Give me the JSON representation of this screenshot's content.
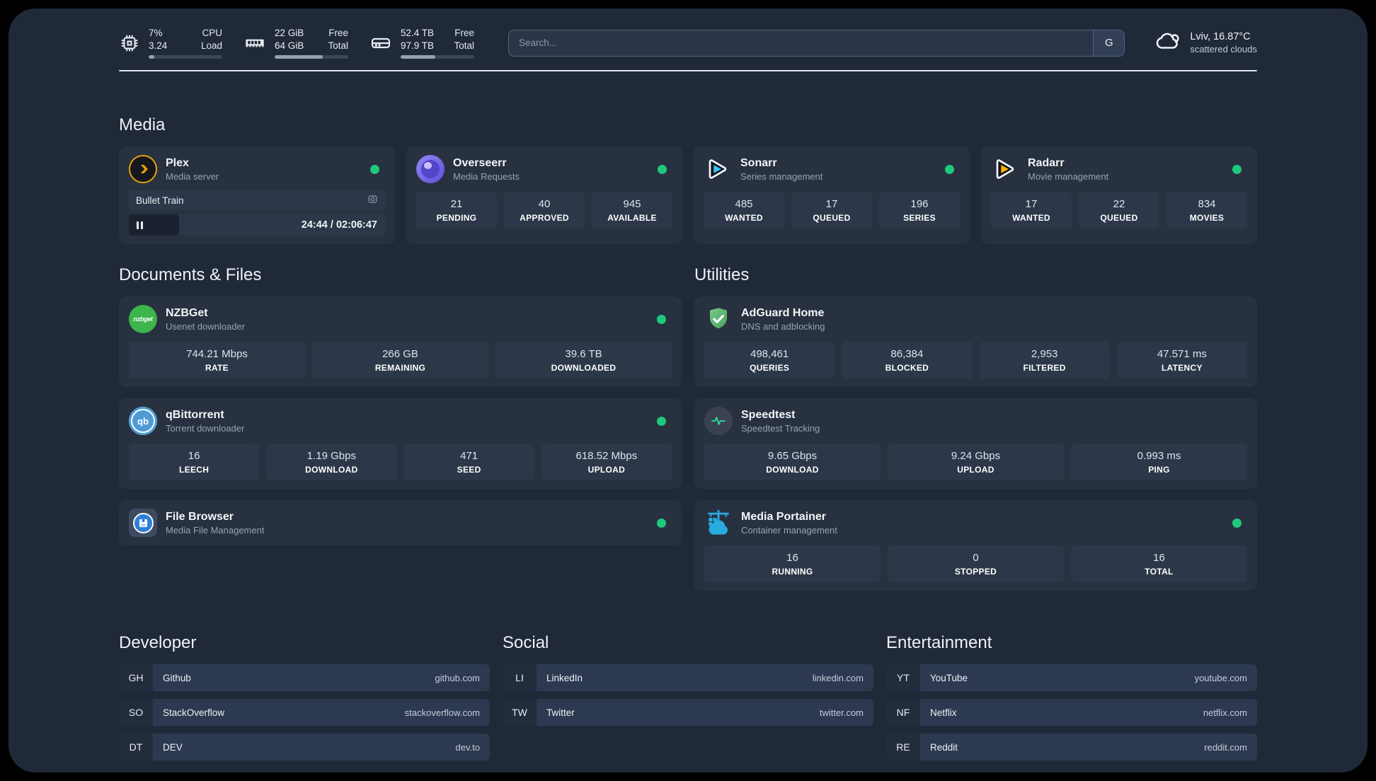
{
  "colors": {
    "status_online": "#1ec97e",
    "plex_accent": "#e5a00d",
    "overseerr_accent": "#6f63e8",
    "sonarr_accent": "#35c5f4",
    "radarr_accent": "#ffb300",
    "nzbget_accent": "#3cb54b",
    "qbittorrent_accent": "#4f9bd5",
    "adguard_accent": "#68c07b",
    "speedtest_accent": "#2de3a4",
    "portainer_accent": "#29abe2"
  },
  "topbar": {
    "stats": [
      {
        "icon": "cpu-icon",
        "values": [
          "7%",
          "3.24"
        ],
        "labels": [
          "CPU",
          "Load"
        ],
        "progress": 8
      },
      {
        "icon": "ram-icon",
        "values": [
          "22 GiB",
          "64 GiB"
        ],
        "labels": [
          "Free",
          "Total"
        ],
        "progress": 65
      },
      {
        "icon": "disk-icon",
        "values": [
          "52.4 TB",
          "97.9 TB"
        ],
        "labels": [
          "Free",
          "Total"
        ],
        "progress": 47
      }
    ],
    "search": {
      "placeholder": "Search...",
      "button": "G"
    },
    "weather": {
      "location": "Lviv, 16.87°C",
      "condition": "scattered clouds"
    }
  },
  "sections": {
    "media": {
      "title": "Media",
      "plex": {
        "title": "Plex",
        "subtitle": "Media server",
        "now_playing": {
          "title": "Bullet Train",
          "time": "24:44 / 02:06:47",
          "progress_pct": 19.5
        }
      },
      "overseerr": {
        "title": "Overseerr",
        "subtitle": "Media Requests",
        "stats": [
          {
            "value": "21",
            "label": "PENDING"
          },
          {
            "value": "40",
            "label": "APPROVED"
          },
          {
            "value": "945",
            "label": "AVAILABLE"
          }
        ]
      },
      "sonarr": {
        "title": "Sonarr",
        "subtitle": "Series management",
        "stats": [
          {
            "value": "485",
            "label": "WANTED"
          },
          {
            "value": "17",
            "label": "QUEUED"
          },
          {
            "value": "196",
            "label": "SERIES"
          }
        ]
      },
      "radarr": {
        "title": "Radarr",
        "subtitle": "Movie management",
        "stats": [
          {
            "value": "17",
            "label": "WANTED"
          },
          {
            "value": "22",
            "label": "QUEUED"
          },
          {
            "value": "834",
            "label": "MOVIES"
          }
        ]
      }
    },
    "documents": {
      "title": "Documents & Files",
      "nzbget": {
        "title": "NZBGet",
        "subtitle": "Usenet downloader",
        "logo_text": "nzbget",
        "stats": [
          {
            "value": "744.21 Mbps",
            "label": "RATE"
          },
          {
            "value": "266 GB",
            "label": "REMAINING"
          },
          {
            "value": "39.6 TB",
            "label": "DOWNLOADED"
          }
        ]
      },
      "qbittorrent": {
        "title": "qBittorrent",
        "subtitle": "Torrent downloader",
        "logo_text": "qb",
        "stats": [
          {
            "value": "16",
            "label": "LEECH"
          },
          {
            "value": "1.19 Gbps",
            "label": "DOWNLOAD"
          },
          {
            "value": "471",
            "label": "SEED"
          },
          {
            "value": "618.52 Mbps",
            "label": "UPLOAD"
          }
        ]
      },
      "filebrowser": {
        "title": "File Browser",
        "subtitle": "Media File Management"
      }
    },
    "utilities": {
      "title": "Utilities",
      "adguard": {
        "title": "AdGuard Home",
        "subtitle": "DNS and adblocking",
        "stats": [
          {
            "value": "498,461",
            "label": "QUERIES"
          },
          {
            "value": "86,384",
            "label": "BLOCKED"
          },
          {
            "value": "2,953",
            "label": "FILTERED"
          },
          {
            "value": "47.571 ms",
            "label": "LATENCY"
          }
        ]
      },
      "speedtest": {
        "title": "Speedtest",
        "subtitle": "Speedtest Tracking",
        "stats": [
          {
            "value": "9.65 Gbps",
            "label": "DOWNLOAD"
          },
          {
            "value": "9.24 Gbps",
            "label": "UPLOAD"
          },
          {
            "value": "0.993 ms",
            "label": "PING"
          }
        ]
      },
      "portainer": {
        "title": "Media Portainer",
        "subtitle": "Container management",
        "stats": [
          {
            "value": "16",
            "label": "RUNNING"
          },
          {
            "value": "0",
            "label": "STOPPED"
          },
          {
            "value": "16",
            "label": "TOTAL"
          }
        ]
      }
    },
    "developer": {
      "title": "Developer",
      "items": [
        {
          "abbr": "GH",
          "name": "Github",
          "url": "github.com"
        },
        {
          "abbr": "SO",
          "name": "StackOverflow",
          "url": "stackoverflow.com"
        },
        {
          "abbr": "DT",
          "name": "DEV",
          "url": "dev.to"
        }
      ]
    },
    "social": {
      "title": "Social",
      "items": [
        {
          "abbr": "LI",
          "name": "LinkedIn",
          "url": "linkedin.com"
        },
        {
          "abbr": "TW",
          "name": "Twitter",
          "url": "twitter.com"
        }
      ]
    },
    "entertainment": {
      "title": "Entertainment",
      "items": [
        {
          "abbr": "YT",
          "name": "YouTube",
          "url": "youtube.com"
        },
        {
          "abbr": "NF",
          "name": "Netflix",
          "url": "netflix.com"
        },
        {
          "abbr": "RE",
          "name": "Reddit",
          "url": "reddit.com"
        }
      ]
    }
  }
}
